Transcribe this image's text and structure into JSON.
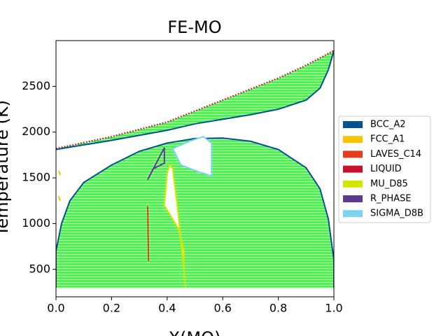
{
  "chart_data": {
    "type": "phase-diagram",
    "title": "FE-MO",
    "x_label": "X(MO)",
    "y_label": "Temperature (K)",
    "xlim": [
      0,
      1
    ],
    "ylim": [
      200,
      3000
    ],
    "xticks": [
      {
        "value": 0,
        "label": "0.0"
      },
      0.2,
      0.4,
      0.6,
      0.8,
      {
        "value": 1,
        "label": "1.0"
      }
    ],
    "yticks": [
      500,
      1000,
      1500,
      2000,
      2500
    ],
    "fill_color": "#4cf54c",
    "series": [
      {
        "name": "BCC_A2",
        "color": "#005293",
        "lines": [
          {
            "x": [
              0,
              0,
              0.02,
              0.05,
              0.1,
              0.2,
              0.3,
              0.4,
              0.5,
              0.6,
              0.7,
              0.8,
              0.9,
              0.95,
              0.98,
              1,
              1
            ],
            "y": [
              300,
              700,
              1000,
              1250,
              1450,
              1640,
              1790,
              1880,
              1930,
              1935,
              1900,
              1810,
              1610,
              1380,
              1050,
              600,
              300
            ]
          },
          {
            "x": [
              0,
              0.2,
              0.4,
              0.5,
              0.6,
              0.7,
              0.8,
              0.9,
              0.95,
              0.98,
              1
            ],
            "y": [
              1810,
              1910,
              2020,
              2090,
              2140,
              2190,
              2250,
              2350,
              2480,
              2680,
              2890
            ]
          }
        ]
      },
      {
        "name": "FCC_A1",
        "color": "#f5c400",
        "lines": [
          {
            "x": [
              0.01,
              0.015
            ],
            "y": [
              1580,
              1530
            ]
          },
          {
            "x": [
              0.01,
              0.015
            ],
            "y": [
              1300,
              1250
            ]
          }
        ]
      },
      {
        "name": "LAVES_C14",
        "color": "#e63c1e",
        "lines": [
          {
            "x": [
              0.33,
              0.333
            ],
            "y": [
              1190,
              590
            ]
          }
        ]
      },
      {
        "name": "LIQUID",
        "color": "#c8102e",
        "dashed": true,
        "lines": [
          {
            "x": [
              0,
              0.2,
              0.4,
              0.5,
              0.6,
              0.7,
              0.8,
              0.9,
              1
            ],
            "y": [
              1820,
              1950,
              2110,
              2230,
              2350,
              2470,
              2590,
              2730,
              2890
            ]
          }
        ]
      },
      {
        "name": "MU_D85",
        "color": "#d4e600",
        "hole": true,
        "lines": [
          {
            "x": [
              0.39,
              0.4,
              0.41,
              0.42,
              0.44,
              0.46,
              0.46,
              0.44,
              0.41,
              0.39,
              0.39
            ],
            "y": [
              1200,
              1550,
              1640,
              1600,
              1100,
              500,
              700,
              950,
              1100,
              1200,
              1200
            ]
          },
          {
            "x": [
              0.46,
              0.465
            ],
            "y": [
              500,
              300
            ]
          }
        ]
      },
      {
        "name": "R_PHASE",
        "color": "#5b3b8c",
        "lines": [
          {
            "x": [
              0.33,
              0.39,
              0.39,
              0.35,
              0.33
            ],
            "y": [
              1480,
              1830,
              1660,
              1600,
              1480
            ]
          }
        ]
      },
      {
        "name": "SIGMA_D8B",
        "color": "#7dd3f0",
        "hole": true,
        "lines": [
          {
            "x": [
              0.42,
              0.48,
              0.53,
              0.56,
              0.56,
              0.5,
              0.45,
              0.42
            ],
            "y": [
              1820,
              1900,
              1950,
              1880,
              1520,
              1580,
              1640,
              1820
            ]
          }
        ]
      }
    ]
  }
}
